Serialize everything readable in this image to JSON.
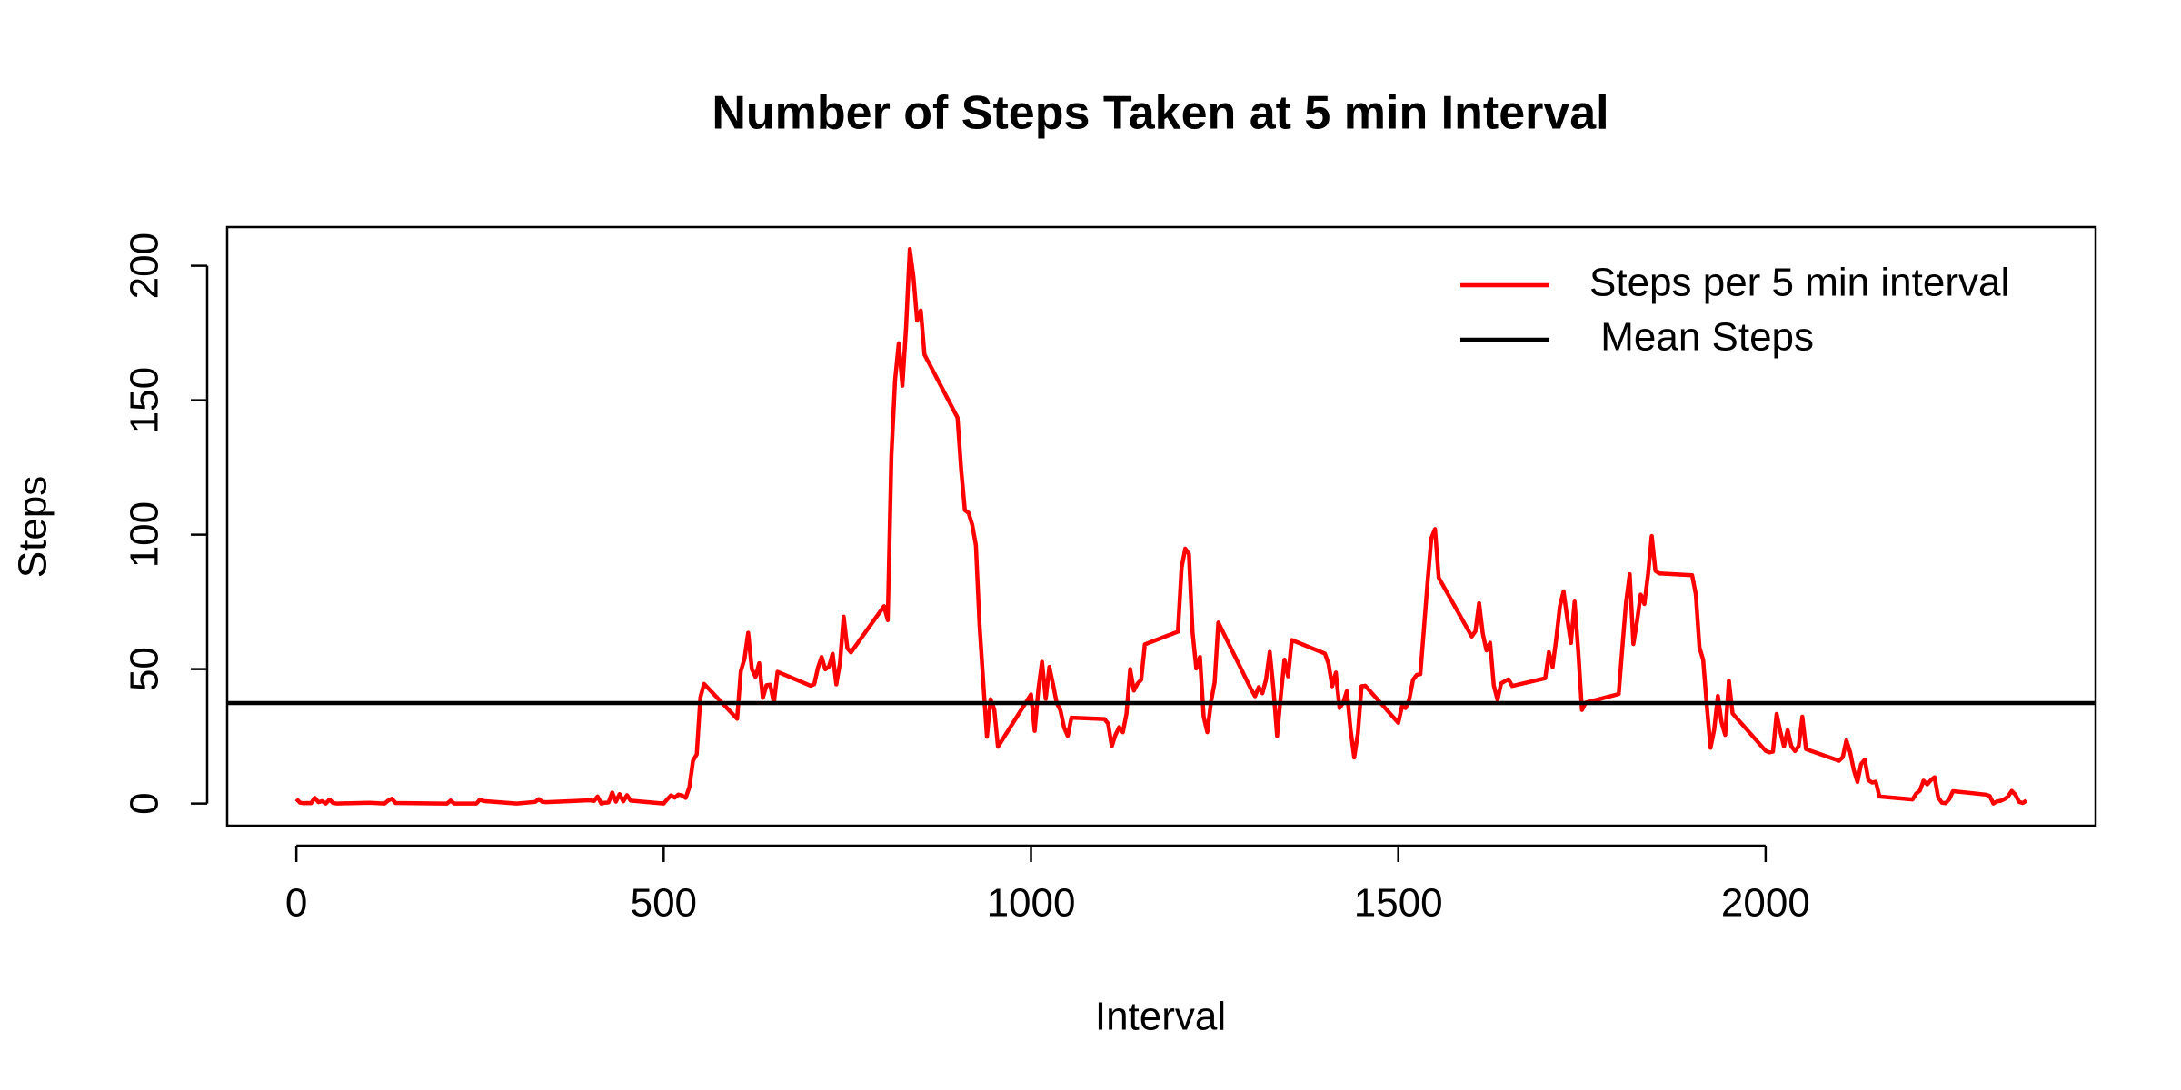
{
  "chart_data": {
    "type": "line",
    "title": "Number of Steps Taken at 5 min Interval",
    "x_label": "Interval",
    "y_label": "Steps",
    "xlim": [
      -94.2,
      2449.2
    ],
    "ylim": [
      -8.25,
      214.4
    ],
    "xticks": [
      0,
      500,
      1000,
      1500,
      2000
    ],
    "yticks": [
      0,
      50,
      100,
      150,
      200
    ],
    "x": [
      0,
      5,
      10,
      15,
      20,
      25,
      30,
      35,
      40,
      45,
      50,
      55,
      100,
      120,
      125,
      130,
      135,
      200,
      205,
      210,
      215,
      240,
      245,
      250,
      255,
      300,
      325,
      330,
      335,
      340,
      400,
      405,
      410,
      415,
      420,
      425,
      430,
      435,
      440,
      445,
      450,
      455,
      500,
      505,
      510,
      515,
      520,
      525,
      530,
      535,
      540,
      545,
      550,
      555,
      600,
      605,
      610,
      615,
      620,
      625,
      630,
      635,
      640,
      645,
      650,
      655,
      700,
      705,
      710,
      715,
      720,
      725,
      730,
      735,
      740,
      745,
      750,
      755,
      800,
      805,
      810,
      815,
      820,
      825,
      830,
      835,
      840,
      845,
      850,
      855,
      900,
      905,
      910,
      915,
      920,
      925,
      930,
      935,
      940,
      945,
      950,
      955,
      1000,
      1005,
      1010,
      1015,
      1020,
      1025,
      1030,
      1035,
      1040,
      1045,
      1050,
      1055,
      1100,
      1105,
      1110,
      1115,
      1120,
      1125,
      1130,
      1135,
      1140,
      1145,
      1150,
      1155,
      1200,
      1205,
      1210,
      1215,
      1220,
      1225,
      1230,
      1235,
      1240,
      1245,
      1250,
      1255,
      1300,
      1305,
      1310,
      1315,
      1320,
      1325,
      1330,
      1335,
      1340,
      1345,
      1350,
      1355,
      1400,
      1405,
      1410,
      1415,
      1420,
      1425,
      1430,
      1435,
      1440,
      1445,
      1450,
      1455,
      1500,
      1505,
      1510,
      1515,
      1520,
      1525,
      1530,
      1535,
      1540,
      1545,
      1550,
      1555,
      1600,
      1605,
      1610,
      1615,
      1620,
      1625,
      1630,
      1635,
      1640,
      1645,
      1650,
      1655,
      1700,
      1705,
      1710,
      1715,
      1720,
      1725,
      1730,
      1735,
      1740,
      1745,
      1750,
      1755,
      1800,
      1805,
      1810,
      1815,
      1820,
      1825,
      1830,
      1835,
      1840,
      1845,
      1850,
      1855,
      1900,
      1905,
      1910,
      1915,
      1920,
      1925,
      1930,
      1935,
      1940,
      1945,
      1950,
      1955,
      2000,
      2005,
      2010,
      2015,
      2020,
      2025,
      2030,
      2035,
      2040,
      2045,
      2050,
      2055,
      2100,
      2105,
      2110,
      2115,
      2120,
      2125,
      2130,
      2135,
      2140,
      2145,
      2150,
      2155,
      2200,
      2205,
      2210,
      2215,
      2220,
      2225,
      2230,
      2235,
      2240,
      2245,
      2250,
      2255,
      2300,
      2305,
      2310,
      2315,
      2320,
      2325,
      2330,
      2335,
      2340,
      2345,
      2350,
      2355
    ],
    "series": [
      {
        "name": "Steps per 5 min interval",
        "color": "#ff0000",
        "values": [
          1.7,
          0.3,
          0.1,
          0.2,
          0.1,
          2.1,
          0.5,
          0.9,
          0,
          1.5,
          0.2,
          0,
          0.3,
          0,
          1.1,
          1.8,
          0.2,
          0,
          0,
          1.1,
          0,
          0,
          0,
          1.5,
          0.9,
          0,
          0.6,
          1.6,
          0.6,
          0.5,
          1.2,
          0.9,
          2.6,
          0,
          0.3,
          0.4,
          4.1,
          0.7,
          3.5,
          0.8,
          3.1,
          1.1,
          0,
          1.6,
          3.0,
          2.2,
          3.3,
          3.0,
          2.1,
          6.1,
          16.0,
          18.3,
          39.5,
          44.5,
          31.5,
          49.3,
          53.8,
          63.5,
          50.0,
          47.1,
          52.2,
          39.3,
          44.0,
          44.2,
          37.4,
          49.0,
          43.8,
          44.4,
          50.5,
          54.5,
          49.9,
          50.9,
          55.7,
          44.3,
          52.3,
          69.5,
          57.8,
          56.2,
          73.4,
          68.2,
          129.4,
          157.5,
          171.2,
          155.4,
          177.3,
          206.2,
          195.9,
          179.6,
          183.4,
          167.0,
          143.5,
          124.0,
          109.1,
          108.1,
          103.7,
          96.0,
          66.2,
          45.2,
          24.8,
          38.8,
          35.0,
          21.1,
          40.6,
          27.0,
          42.4,
          52.7,
          38.9,
          50.8,
          44.3,
          37.4,
          34.7,
          28.3,
          25.1,
          31.9,
          31.4,
          29.7,
          21.3,
          25.5,
          28.4,
          26.5,
          33.4,
          50.0,
          42.0,
          44.6,
          46.0,
          59.2,
          63.9,
          87.7,
          94.8,
          92.8,
          63.4,
          50.2,
          54.5,
          32.4,
          26.5,
          37.7,
          45.1,
          67.3,
          42.3,
          39.9,
          43.3,
          41.0,
          46.2,
          56.4,
          42.8,
          25.1,
          40.0,
          53.5,
          47.3,
          60.8,
          55.8,
          52.0,
          43.6,
          48.7,
          35.5,
          37.5,
          41.8,
          27.5,
          17.1,
          26.1,
          43.6,
          43.8,
          30.0,
          36.1,
          35.5,
          38.8,
          46.0,
          47.8,
          48.1,
          65.3,
          82.9,
          98.7,
          102.1,
          84.0,
          62.1,
          64.1,
          74.5,
          63.2,
          56.9,
          59.8,
          43.9,
          38.6,
          44.7,
          45.5,
          46.2,
          43.7,
          46.6,
          56.3,
          50.7,
          61.2,
          73.4,
          78.9,
          68.9,
          59.7,
          75.1,
          56.5,
          34.8,
          37.5,
          40.7,
          58.0,
          74.7,
          85.3,
          59.3,
          67.8,
          77.7,
          74.2,
          85.3,
          99.5,
          86.6,
          85.6,
          84.9,
          77.8,
          58.0,
          53.4,
          36.3,
          20.7,
          27.4,
          40.0,
          30.2,
          25.5,
          45.7,
          33.5,
          19.6,
          19.0,
          19.3,
          33.3,
          26.8,
          21.2,
          27.3,
          21.3,
          19.5,
          21.3,
          32.3,
          20.2,
          15.9,
          17.2,
          23.5,
          19.2,
          12.5,
          8.0,
          14.7,
          16.3,
          8.7,
          7.8,
          8.1,
          2.6,
          1.5,
          3.7,
          4.8,
          8.5,
          7.1,
          8.7,
          9.8,
          2.2,
          0.3,
          0.1,
          1.6,
          4.6,
          3.3,
          2.8,
          0,
          0.8,
          1.0,
          1.6,
          2.6,
          4.7,
          3.3,
          0.6,
          0.2,
          1.1
        ]
      }
    ],
    "mean_line": {
      "name": " Mean Steps",
      "value": 37.38,
      "color": "#000000"
    },
    "legend": "top-right"
  }
}
